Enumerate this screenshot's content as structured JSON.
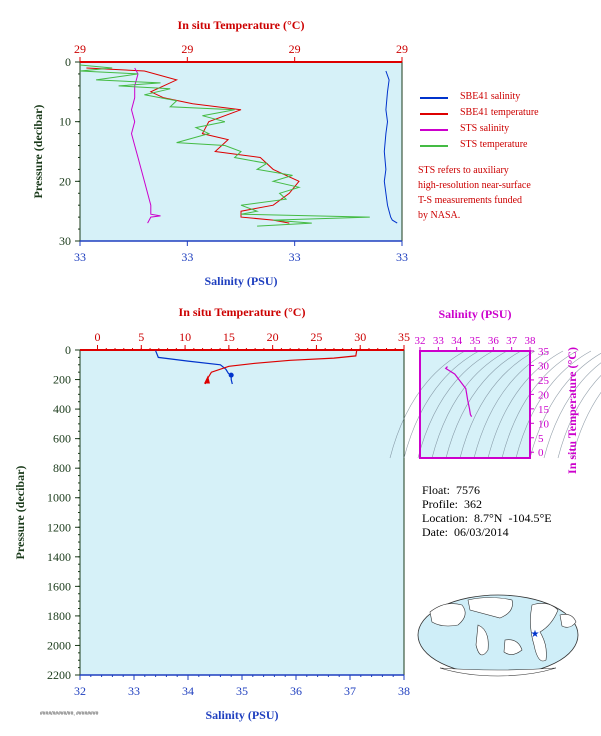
{
  "chart_data": [
    {
      "type": "line",
      "top_axis_title": "In situ Temperature (°C)",
      "top_ticks": [
        "29",
        "29",
        "29",
        "29"
      ],
      "bottom_axis_title": "Salinity (PSU)",
      "bottom_ticks": [
        "33",
        "33",
        "33",
        "33"
      ],
      "ylabel": "Pressure (decibar)",
      "ylim": [
        30,
        0
      ],
      "yticks": [
        0,
        10,
        20,
        30
      ],
      "series": [
        {
          "name": "SBE41 salinity",
          "color": "#0033cc",
          "points": [
            [
              0.95,
              1.5
            ],
            [
              0.96,
              3
            ],
            [
              0.955,
              5
            ],
            [
              0.95,
              8
            ],
            [
              0.955,
              10
            ],
            [
              0.95,
              12
            ],
            [
              0.945,
              15
            ],
            [
              0.95,
              18
            ],
            [
              0.945,
              20
            ],
            [
              0.95,
              22
            ],
            [
              0.955,
              24
            ],
            [
              0.96,
              25
            ],
            [
              0.965,
              26
            ],
            [
              0.97,
              26.5
            ],
            [
              0.985,
              27
            ]
          ]
        },
        {
          "name": "SBE41 temperature",
          "color": "#dd0000",
          "points": [
            [
              0.02,
              1
            ],
            [
              0.2,
              1.5
            ],
            [
              0.3,
              3
            ],
            [
              0.22,
              5
            ],
            [
              0.26,
              6
            ],
            [
              0.35,
              7
            ],
            [
              0.5,
              8
            ],
            [
              0.4,
              10
            ],
            [
              0.38,
              12
            ],
            [
              0.46,
              13
            ],
            [
              0.42,
              15
            ],
            [
              0.56,
              16
            ],
            [
              0.6,
              18
            ],
            [
              0.68,
              20
            ],
            [
              0.65,
              22
            ],
            [
              0.6,
              24
            ],
            [
              0.5,
              25
            ],
            [
              0.5,
              26
            ],
            [
              0.6,
              26.5
            ],
            [
              0.65,
              27
            ]
          ]
        },
        {
          "name": "STS salinity",
          "color": "#cc00cc",
          "points": [
            [
              0.17,
              1
            ],
            [
              0.18,
              2
            ],
            [
              0.17,
              4
            ],
            [
              0.17,
              6
            ],
            [
              0.16,
              8
            ],
            [
              0.17,
              10
            ],
            [
              0.16,
              12
            ],
            [
              0.17,
              14
            ],
            [
              0.18,
              16
            ],
            [
              0.19,
              18
            ],
            [
              0.2,
              20
            ],
            [
              0.21,
              22
            ],
            [
              0.22,
              24
            ],
            [
              0.22,
              25.5
            ],
            [
              0.25,
              25.8
            ],
            [
              0.22,
              26
            ],
            [
              0.21,
              27
            ]
          ]
        },
        {
          "name": "STS temperature",
          "color": "#44bb44",
          "points": [
            [
              0.0,
              0.5
            ],
            [
              0.1,
              1
            ],
            [
              0.0,
              1.5
            ],
            [
              0.18,
              2
            ],
            [
              0.05,
              3
            ],
            [
              0.25,
              3.5
            ],
            [
              0.12,
              4
            ],
            [
              0.28,
              4.5
            ],
            [
              0.2,
              5.5
            ],
            [
              0.3,
              6.5
            ],
            [
              0.28,
              7.5
            ],
            [
              0.48,
              8
            ],
            [
              0.38,
              9
            ],
            [
              0.45,
              10
            ],
            [
              0.36,
              11
            ],
            [
              0.4,
              12
            ],
            [
              0.3,
              13.5
            ],
            [
              0.45,
              14
            ],
            [
              0.5,
              15
            ],
            [
              0.48,
              16
            ],
            [
              0.58,
              17
            ],
            [
              0.55,
              18
            ],
            [
              0.66,
              19
            ],
            [
              0.6,
              20
            ],
            [
              0.68,
              21
            ],
            [
              0.62,
              22
            ],
            [
              0.64,
              23
            ],
            [
              0.5,
              24
            ],
            [
              0.55,
              25
            ],
            [
              0.5,
              25.5
            ],
            [
              0.9,
              26
            ],
            [
              0.6,
              26.5
            ],
            [
              0.72,
              27
            ],
            [
              0.55,
              27.5
            ]
          ]
        }
      ],
      "legend": [
        "SBE41 salinity",
        "SBE41 temperature",
        "STS salinity",
        "STS temperature"
      ],
      "note": [
        "STS refers to auxiliary",
        "high-resolution near-surface",
        "T-S measurements funded",
        "by NASA."
      ]
    },
    {
      "type": "line",
      "top_axis_title": "In situ Temperature (°C)",
      "top_ticks": [
        "0",
        "5",
        "10",
        "15",
        "20",
        "25",
        "30",
        "35"
      ],
      "xlim_temperature": [
        -2,
        35
      ],
      "bottom_axis_title": "Salinity (PSU)",
      "bottom_ticks": [
        "32",
        "33",
        "34",
        "35",
        "36",
        "37",
        "38"
      ],
      "xlim_salinity": [
        32,
        38
      ],
      "ylabel": "Pressure (decibar)",
      "ylim": [
        2200,
        0
      ],
      "yticks": [
        0,
        200,
        400,
        600,
        800,
        1000,
        1200,
        1400,
        1600,
        1800,
        2000,
        2200
      ],
      "series": [
        {
          "name": "Salinity",
          "color": "#0033cc",
          "points": [
            [
              33.4,
              5
            ],
            [
              33.45,
              50
            ],
            [
              34.0,
              75
            ],
            [
              34.6,
              100
            ],
            [
              34.7,
              130
            ],
            [
              34.75,
              160
            ],
            [
              34.8,
              170
            ],
            [
              34.8,
              200
            ],
            [
              34.82,
              230
            ]
          ]
        },
        {
          "name": "Temperature",
          "color": "#dd0000",
          "points": [
            [
              29.6,
              5
            ],
            [
              29.5,
              40
            ],
            [
              27,
              55
            ],
            [
              22,
              70
            ],
            [
              18,
              90
            ],
            [
              15,
              110
            ],
            [
              13,
              150
            ],
            [
              12.5,
              200
            ],
            [
              12.3,
              230
            ]
          ]
        }
      ]
    },
    {
      "type": "scatter",
      "title": "Salinity (PSU)",
      "x_ticks": [
        "32",
        "33",
        "34",
        "35",
        "36",
        "37",
        "38"
      ],
      "xlim": [
        32,
        38
      ],
      "ylabel": "In situ Temperature (°C)",
      "y_ticks": [
        "0",
        "5",
        "10",
        "15",
        "20",
        "25",
        "30",
        "35"
      ],
      "ylim": [
        -2,
        35
      ],
      "series": [
        {
          "name": "T-S",
          "color": "#cc00cc",
          "points": [
            [
              33.5,
              29.6
            ],
            [
              33.4,
              29.0
            ],
            [
              33.9,
              27
            ],
            [
              34.5,
              22
            ],
            [
              34.6,
              18
            ],
            [
              34.7,
              15
            ],
            [
              34.75,
              13
            ],
            [
              34.8,
              12.5
            ],
            [
              34.82,
              12.3
            ]
          ]
        }
      ]
    }
  ],
  "info": {
    "float": "Float:  7576",
    "profile": "Profile:  362",
    "location": "Location:  8.7°N  -104.5°E",
    "date": "Date:  06/03/2014"
  },
  "footer_text": "####/#####/##, ########"
}
